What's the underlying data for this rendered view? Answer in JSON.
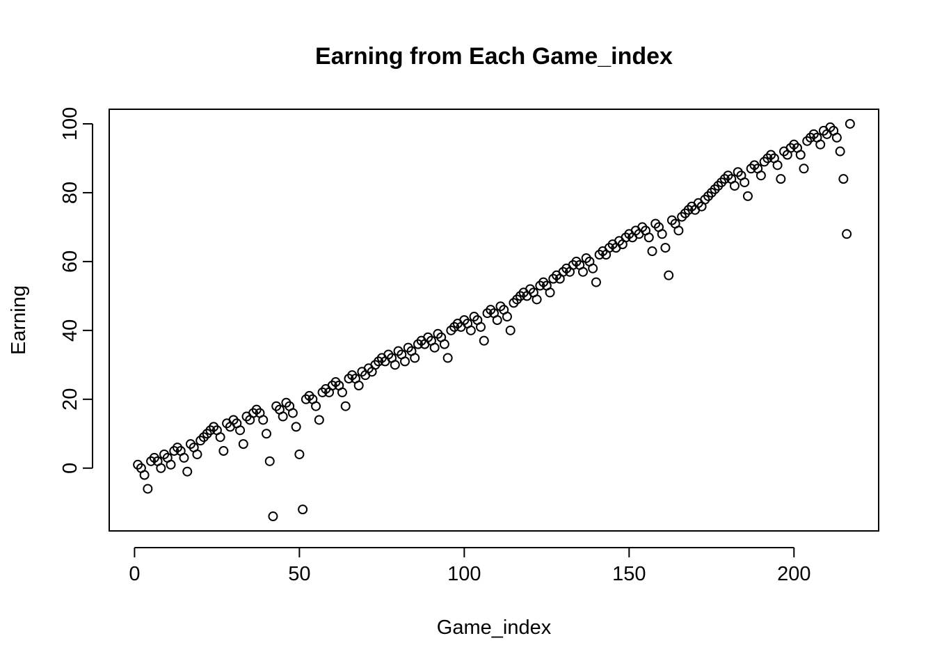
{
  "chart_data": {
    "type": "scatter",
    "title": "Earning from Each Game_index",
    "xlabel": "Game_index",
    "ylabel": "Earning",
    "xlim": [
      -7.68,
      225.68
    ],
    "ylim": [
      -18.24,
      104.24
    ],
    "x_ticks": [
      0,
      50,
      100,
      150,
      200
    ],
    "y_ticks": [
      0,
      20,
      40,
      60,
      80,
      100
    ],
    "grid": false,
    "legend": "none",
    "marker": "open-circle",
    "series": [
      {
        "x": [
          1,
          2,
          3,
          4,
          5,
          6,
          7,
          8,
          9,
          10,
          11,
          12,
          13,
          14,
          15,
          16,
          17,
          18,
          19,
          20,
          21,
          22,
          23,
          24,
          25,
          26,
          27,
          28,
          29,
          30,
          31,
          32,
          33,
          34,
          35,
          36,
          37,
          38,
          39,
          40,
          41,
          42,
          43,
          44,
          45,
          46,
          47,
          48,
          49,
          50,
          51,
          52,
          53,
          54,
          55,
          56,
          57,
          58,
          59,
          60,
          61,
          62,
          63,
          64,
          65,
          66,
          67,
          68,
          69,
          70,
          71,
          72,
          73,
          74,
          75,
          76,
          77,
          78,
          79,
          80,
          81,
          82,
          83,
          84,
          85,
          86,
          87,
          88,
          89,
          90,
          91,
          92,
          93,
          94,
          95,
          96,
          97,
          98,
          99,
          100,
          101,
          102,
          103,
          104,
          105,
          106,
          107,
          108,
          109,
          110,
          111,
          112,
          113,
          114,
          115,
          116,
          117,
          118,
          119,
          120,
          121,
          122,
          123,
          124,
          125,
          126,
          127,
          128,
          129,
          130,
          131,
          132,
          133,
          134,
          135,
          136,
          137,
          138,
          139,
          140,
          141,
          142,
          143,
          144,
          145,
          146,
          147,
          148,
          149,
          150,
          151,
          152,
          153,
          154,
          155,
          156,
          157,
          158,
          159,
          160,
          161,
          162,
          163,
          164,
          165,
          166,
          167,
          168,
          169,
          170,
          171,
          172,
          173,
          174,
          175,
          176,
          177,
          178,
          179,
          180,
          181,
          182,
          183,
          184,
          185,
          186,
          187,
          188,
          189,
          190,
          191,
          192,
          193,
          194,
          195,
          196,
          197,
          198,
          199,
          200,
          201,
          202,
          203,
          204,
          205,
          206,
          207,
          208,
          209,
          210,
          211,
          212,
          213,
          214,
          215,
          216,
          217
        ],
        "y": [
          1,
          0,
          -2,
          -6,
          2,
          3,
          2,
          0,
          4,
          3,
          1,
          5,
          6,
          5,
          3,
          -1,
          7,
          6,
          4,
          8,
          9,
          10,
          11,
          12,
          11,
          9,
          5,
          13,
          12,
          14,
          13,
          11,
          7,
          15,
          14,
          16,
          17,
          16,
          14,
          10,
          2,
          -14,
          18,
          17,
          15,
          19,
          18,
          16,
          12,
          4,
          -12,
          20,
          21,
          20,
          18,
          14,
          22,
          23,
          22,
          24,
          25,
          24,
          22,
          18,
          26,
          27,
          26,
          24,
          28,
          27,
          29,
          28,
          30,
          31,
          32,
          31,
          33,
          32,
          30,
          34,
          33,
          31,
          35,
          34,
          32,
          36,
          37,
          36,
          38,
          37,
          35,
          39,
          38,
          36,
          32,
          40,
          41,
          42,
          41,
          43,
          42,
          40,
          44,
          43,
          41,
          37,
          45,
          46,
          45,
          43,
          47,
          46,
          44,
          40,
          48,
          49,
          50,
          51,
          50,
          52,
          51,
          49,
          53,
          54,
          53,
          51,
          55,
          56,
          55,
          57,
          58,
          57,
          59,
          60,
          59,
          57,
          61,
          60,
          58,
          54,
          62,
          63,
          62,
          64,
          65,
          64,
          66,
          65,
          67,
          68,
          67,
          69,
          68,
          70,
          69,
          67,
          63,
          71,
          70,
          68,
          64,
          56,
          72,
          71,
          69,
          73,
          74,
          75,
          76,
          75,
          77,
          76,
          78,
          79,
          80,
          81,
          82,
          83,
          84,
          85,
          84,
          82,
          86,
          85,
          83,
          79,
          87,
          88,
          87,
          85,
          89,
          90,
          91,
          90,
          88,
          84,
          92,
          91,
          93,
          94,
          93,
          91,
          87,
          95,
          96,
          97,
          96,
          94,
          98,
          97,
          99,
          98,
          96,
          92,
          84,
          68,
          100
        ]
      }
    ]
  }
}
